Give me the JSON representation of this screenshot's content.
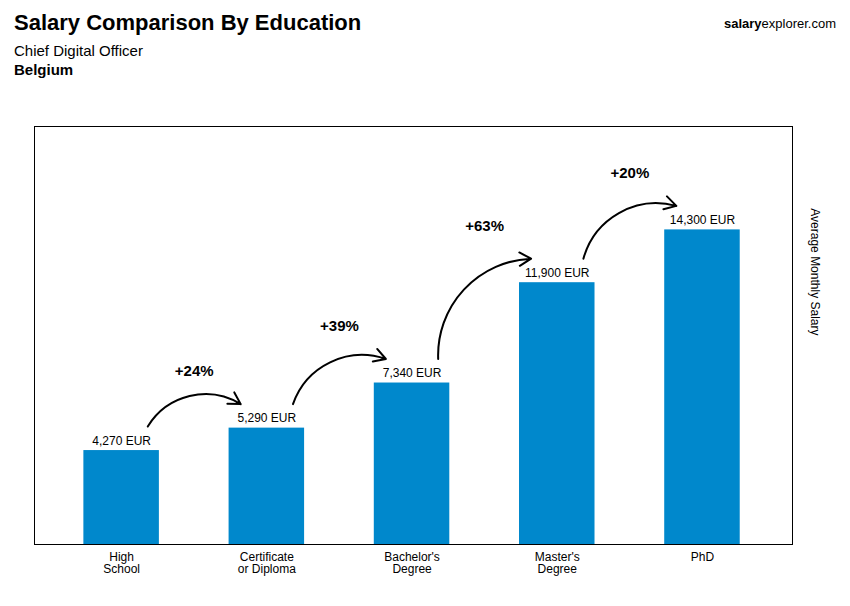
{
  "chart_data": {
    "type": "bar",
    "title": "Salary Comparison By Education",
    "subtitle": [
      "Chief Digital Officer",
      "Belgium"
    ],
    "watermark": [
      "salary",
      "explorer.com"
    ],
    "ylabel": "Average Monthly Salary",
    "categories": [
      "High\nSchool",
      "Certificate\nor Diploma",
      "Bachelor's\nDegree",
      "Master's\nDegree",
      "PhD"
    ],
    "values": [
      4270,
      5290,
      7340,
      11900,
      14300
    ],
    "value_labels": [
      "4,270 EUR",
      "5,290 EUR",
      "7,340 EUR",
      "11,900 EUR",
      "14,300 EUR"
    ],
    "data_labels": true,
    "change_labels": [
      "+24%",
      "+39%",
      "+63%",
      "+20%"
    ],
    "color": "#0088cc",
    "ylim": [
      0,
      19000
    ],
    "yticks": [],
    "tick_labels": "x",
    "grid": false
  }
}
